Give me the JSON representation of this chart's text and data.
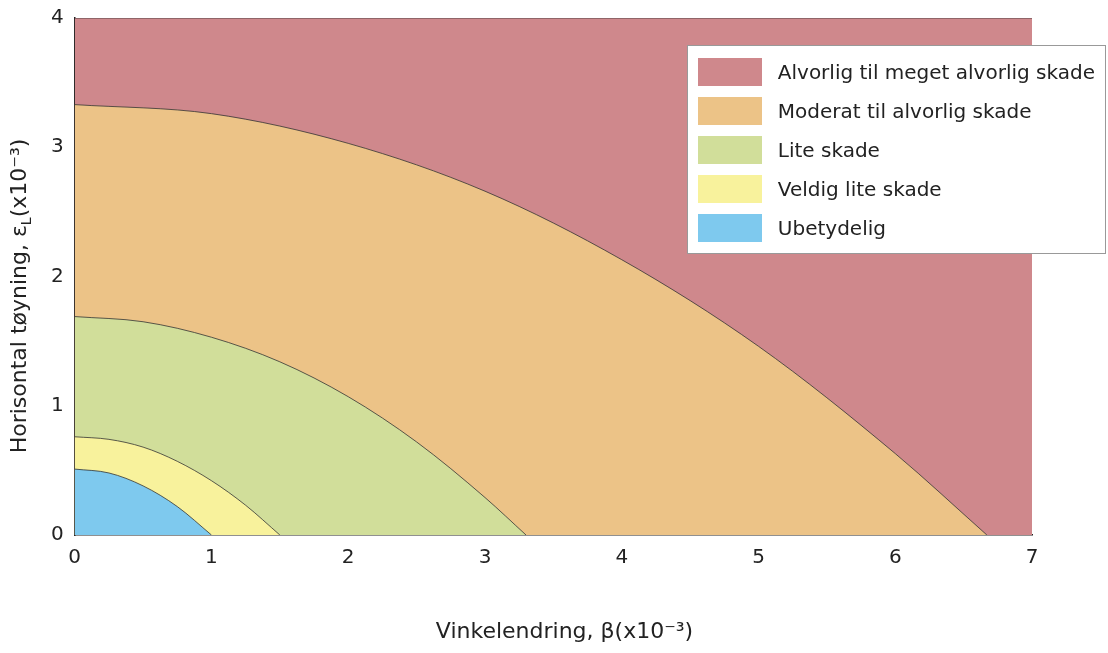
{
  "chart_data": {
    "type": "area",
    "xlabel": "Vinkelendring, β(x10⁻³)",
    "ylabel": "Horisontal tøyning, ε$_{L}$(x10⁻³)",
    "xlim": [
      0,
      7
    ],
    "ylim": [
      0,
      4
    ],
    "xticks": [
      0,
      1,
      2,
      3,
      4,
      5,
      6,
      7
    ],
    "yticks": [
      0,
      1,
      2,
      3,
      4
    ],
    "grid": false,
    "legend": "top right",
    "series": [
      {
        "name": "Alvorlig til meget alvorlig skade",
        "color": "#cf888c",
        "x": [
          0,
          7
        ],
        "values": [
          4,
          4
        ]
      },
      {
        "name": "Moderat til alvorlig skade",
        "color": "#ecc387",
        "x": [
          0,
          1,
          2,
          3,
          4,
          5,
          6,
          6.67
        ],
        "values": [
          3.33,
          3.26,
          3.03,
          2.66,
          2.13,
          1.46,
          0.63,
          0
        ]
      },
      {
        "name": "Lite skade",
        "color": "#d1de9a",
        "x": [
          0,
          0.5,
          1,
          1.5,
          2,
          2.5,
          3,
          3.3
        ],
        "values": [
          1.69,
          1.65,
          1.53,
          1.34,
          1.07,
          0.72,
          0.29,
          0
        ]
      },
      {
        "name": "Veldig lite skade",
        "color": "#f8f29c",
        "x": [
          0,
          0.25,
          0.5,
          0.75,
          1,
          1.25,
          1.5
        ],
        "values": [
          0.76,
          0.74,
          0.68,
          0.57,
          0.42,
          0.23,
          0
        ]
      },
      {
        "name": "Ubetydelig",
        "color": "#7ec9ee",
        "x": [
          0,
          0.25,
          0.5,
          0.75,
          1
        ],
        "values": [
          0.51,
          0.48,
          0.38,
          0.22,
          0
        ]
      }
    ]
  }
}
